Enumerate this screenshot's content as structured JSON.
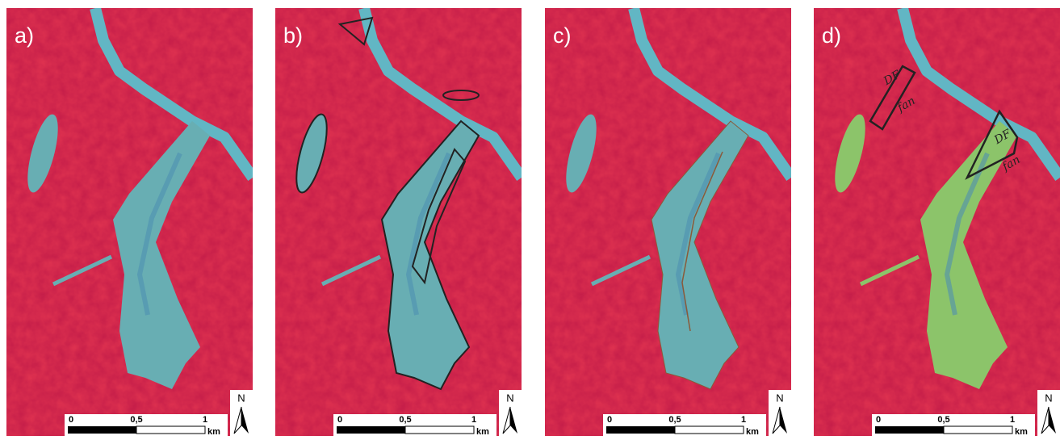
{
  "panels": [
    {
      "label": "a)"
    },
    {
      "label": "b)"
    },
    {
      "label": "c)"
    },
    {
      "label": "d)",
      "annotations": [
        "DF",
        "fan",
        "DF",
        "fan"
      ]
    }
  ],
  "scale_bar": {
    "labels": [
      "0",
      "0,5",
      "1"
    ],
    "unit": "km"
  },
  "north": "N"
}
